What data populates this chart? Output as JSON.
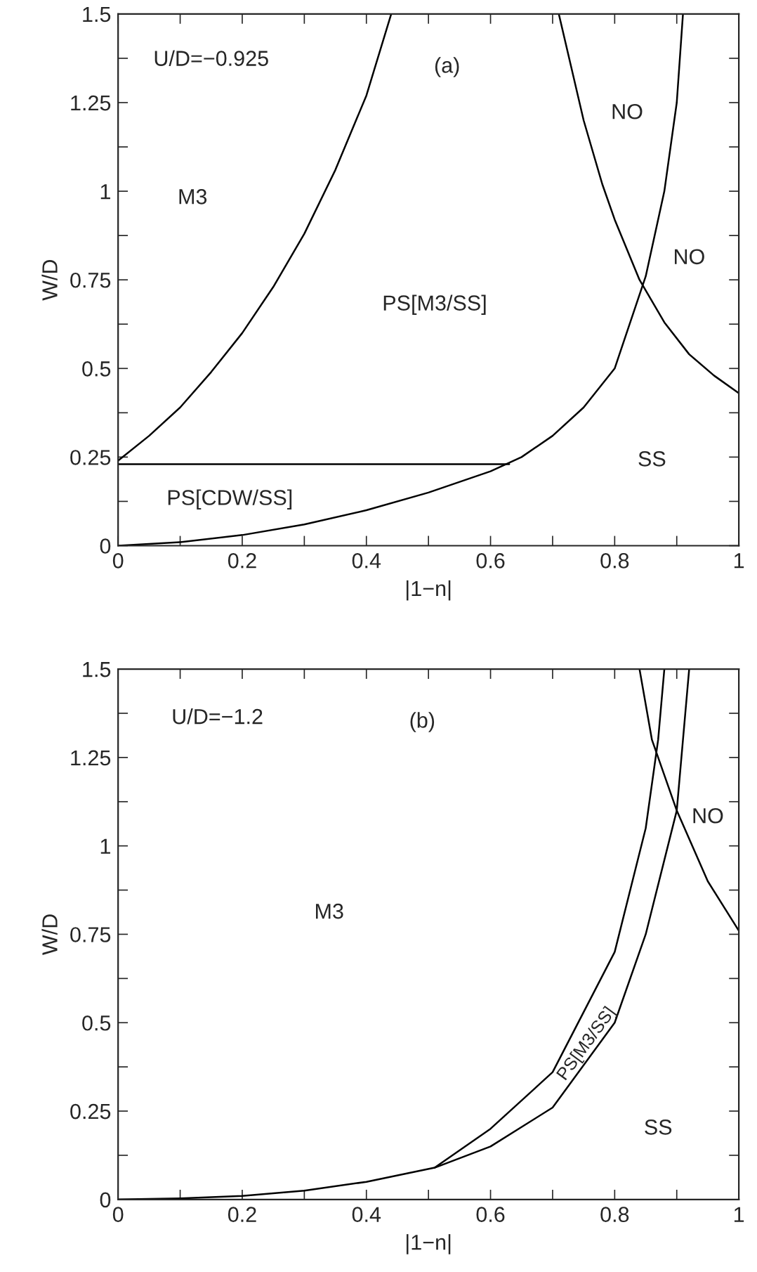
{
  "chart_data": [
    {
      "type": "line",
      "xlabel": "|1−n|",
      "ylabel": "W/D",
      "xlim": [
        0,
        1
      ],
      "ylim": [
        0,
        1.5
      ],
      "xticks": [
        0,
        {
          "value": 0.1,
          "label": null
        },
        0.2,
        {
          "value": 0.3,
          "label": null
        },
        0.4,
        {
          "value": 0.5,
          "label": null
        },
        0.6,
        {
          "value": 0.7,
          "label": null
        },
        0.8,
        {
          "value": 0.9,
          "label": null
        },
        1
      ],
      "yticks": [
        0,
        {
          "value": 0.125,
          "label": null
        },
        0.25,
        {
          "value": 0.375,
          "label": null
        },
        0.5,
        {
          "value": 0.625,
          "label": null
        },
        0.75,
        {
          "value": 0.875,
          "label": null
        },
        1,
        {
          "value": 1.125,
          "label": null
        },
        1.25,
        {
          "value": 1.375,
          "label": null
        },
        1.5
      ],
      "grid": false,
      "legend": false,
      "marker": "none",
      "line_style": "solid",
      "series": [
        {
          "color": "#000000",
          "x": [
            0,
            0.05,
            0.1,
            0.15,
            0.2,
            0.25,
            0.3,
            0.35,
            0.4,
            0.44
          ],
          "values": [
            0.24,
            0.31,
            0.39,
            0.49,
            0.6,
            0.73,
            0.88,
            1.06,
            1.27,
            1.5
          ]
        },
        {
          "color": "#000000",
          "x": [
            0,
            0.63
          ],
          "values": [
            0.23,
            0.23
          ]
        },
        {
          "color": "#000000",
          "x": [
            0,
            0.1,
            0.2,
            0.3,
            0.4,
            0.5,
            0.6,
            0.65,
            0.7,
            0.75,
            0.8,
            0.85,
            0.88,
            0.9,
            0.91
          ],
          "values": [
            0,
            0.01,
            0.03,
            0.06,
            0.1,
            0.15,
            0.21,
            0.25,
            0.31,
            0.39,
            0.5,
            0.76,
            1.0,
            1.25,
            1.5
          ]
        },
        {
          "color": "#000000",
          "x": [
            0.71,
            0.73,
            0.75,
            0.78,
            0.8,
            0.84,
            0.88,
            0.92,
            0.96,
            1.0
          ],
          "values": [
            1.5,
            1.35,
            1.2,
            1.02,
            0.92,
            0.75,
            0.63,
            0.54,
            0.48,
            0.43
          ]
        }
      ],
      "annotations": [
        "U/D=−0.925",
        "(a)",
        "M3",
        "PS[M3/SS]",
        "NO",
        "NO",
        "SS",
        "PS[CDW/SS]"
      ]
    },
    {
      "type": "line",
      "xlabel": "|1−n|",
      "ylabel": "W/D",
      "xlim": [
        0,
        1
      ],
      "ylim": [
        0,
        1.5
      ],
      "xticks": [
        0,
        {
          "value": 0.1,
          "label": null
        },
        0.2,
        {
          "value": 0.3,
          "label": null
        },
        0.4,
        {
          "value": 0.5,
          "label": null
        },
        0.6,
        {
          "value": 0.7,
          "label": null
        },
        0.8,
        {
          "value": 0.9,
          "label": null
        },
        1
      ],
      "yticks": [
        0,
        {
          "value": 0.125,
          "label": null
        },
        0.25,
        {
          "value": 0.375,
          "label": null
        },
        0.5,
        {
          "value": 0.625,
          "label": null
        },
        0.75,
        {
          "value": 0.875,
          "label": null
        },
        1,
        {
          "value": 1.125,
          "label": null
        },
        1.25,
        {
          "value": 1.375,
          "label": null
        },
        1.5
      ],
      "grid": false,
      "legend": false,
      "marker": "none",
      "line_style": "solid",
      "series": [
        {
          "color": "#000000",
          "x": [
            0,
            0.1,
            0.2,
            0.3,
            0.4,
            0.51,
            0.6,
            0.7,
            0.8,
            0.85,
            0.9,
            0.92
          ],
          "values": [
            0,
            0.003,
            0.01,
            0.025,
            0.05,
            0.09,
            0.15,
            0.26,
            0.5,
            0.75,
            1.1,
            1.5
          ]
        },
        {
          "color": "#000000",
          "x": [
            0.51,
            0.6,
            0.7,
            0.8,
            0.85,
            0.87,
            0.88
          ],
          "values": [
            0.09,
            0.2,
            0.36,
            0.7,
            1.05,
            1.3,
            1.5
          ]
        },
        {
          "color": "#000000",
          "x": [
            0.84,
            0.86,
            0.9,
            0.95,
            1.0
          ],
          "values": [
            1.5,
            1.3,
            1.1,
            0.9,
            0.76
          ]
        }
      ],
      "annotations": [
        "U/D=−1.2",
        "(b)",
        "M3",
        "PS[M3/SS]",
        "NO",
        "SS"
      ]
    }
  ]
}
